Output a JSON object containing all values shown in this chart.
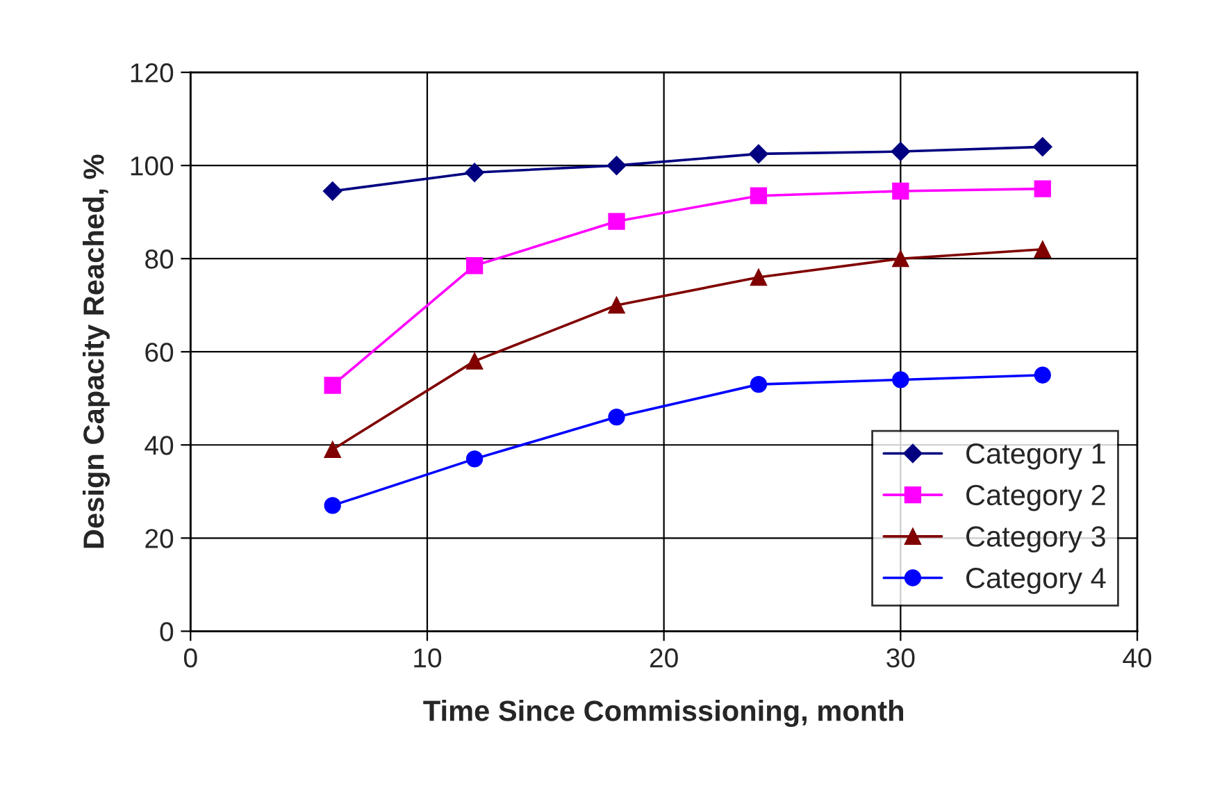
{
  "chart_data": {
    "type": "line",
    "xlabel": "Time Since Commissioning, month",
    "ylabel": "Design Capacity Reached, %",
    "x": [
      6,
      12,
      18,
      24,
      30,
      36
    ],
    "series": [
      {
        "name": "Category 1",
        "color": "#000080",
        "marker": "diamond",
        "values": [
          94.5,
          98.5,
          100,
          102.5,
          103,
          104
        ]
      },
      {
        "name": "Category 2",
        "color": "#ff00ff",
        "marker": "square",
        "values": [
          52.8,
          78.5,
          88,
          93.5,
          94.5,
          95
        ]
      },
      {
        "name": "Category 3",
        "color": "#800000",
        "marker": "triangle",
        "values": [
          39,
          58,
          70,
          76,
          80,
          82
        ]
      },
      {
        "name": "Category 4",
        "color": "#0000ff",
        "marker": "circle",
        "values": [
          27,
          37,
          46,
          53,
          54,
          55
        ]
      }
    ],
    "xlim": [
      0,
      40
    ],
    "xticks": [
      0,
      10,
      20,
      30,
      40
    ],
    "ylim": [
      0,
      120
    ],
    "yticks": [
      0,
      20,
      40,
      60,
      80,
      100,
      120
    ],
    "grid": true,
    "legend": "bottom right",
    "line_style": "solid"
  }
}
